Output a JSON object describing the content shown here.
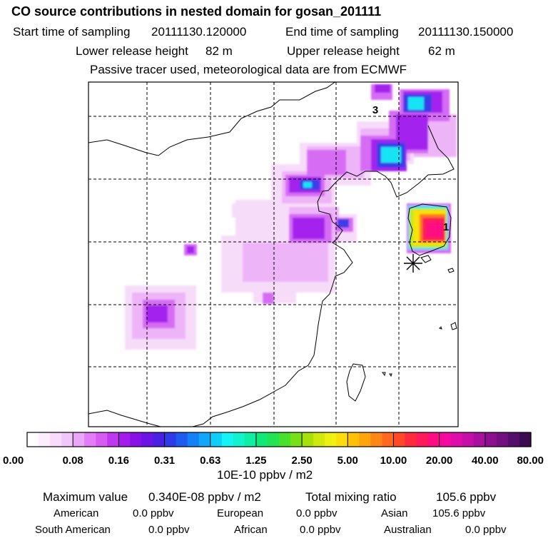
{
  "header": {
    "title": "CO  source contributions in nested domain for gosan_201111",
    "start_label": "Start time of sampling",
    "start_value": "20111130.120000",
    "end_label": "End time of sampling",
    "end_value": "20111130.150000",
    "lower_label": "Lower release height",
    "lower_value": "82 m",
    "upper_label": "Upper release height",
    "upper_value": "62 m",
    "note": "Passive tracer used, meteorological data are from ECMWF"
  },
  "map": {
    "labels": [
      "3",
      "1"
    ],
    "receptor_marker": "asterisk-icon"
  },
  "colorbar": {
    "tick_labels": [
      "0.00",
      "0.08",
      "0.16",
      "0.31",
      "0.63",
      "1.25",
      "2.50",
      "5.00",
      "10.00",
      "20.00",
      "40.00",
      "80.00"
    ],
    "unit": "10E-10 ppbv / m2",
    "colors": [
      "#ffffff",
      "#fdeefe",
      "#f9dcfd",
      "#f3c6fb",
      "#eca6f9",
      "#e37cf6",
      "#d75af3",
      "#bf38ef",
      "#a51dec",
      "#8a10e8",
      "#6a14e6",
      "#4a20e4",
      "#2f3ae8",
      "#1e5cf0",
      "#1482f6",
      "#10a6fa",
      "#10cefc",
      "#14f4f4",
      "#12f2cc",
      "#10eea2",
      "#12e878",
      "#22e452",
      "#48e02e",
      "#78e016",
      "#a8e00e",
      "#d0e80e",
      "#f0f010",
      "#ffdc0a",
      "#ffc008",
      "#ffa40c",
      "#ff8614",
      "#ff681e",
      "#ff4828",
      "#ff2a3c",
      "#ff1a5a",
      "#ff0c82",
      "#f40aa0",
      "#e00cac",
      "#c60ea8",
      "#aa10a0",
      "#8e1092",
      "#721082",
      "#560e6c",
      "#3c0c52"
    ]
  },
  "stats": {
    "max_label": "Maximum value",
    "max_value": "0.340E-08 ppbv / m2",
    "total_label": "Total mixing ratio",
    "total_value": "105.6 ppbv",
    "rows": [
      [
        {
          "name": "American",
          "value": "0.0 ppbv"
        },
        {
          "name": "European",
          "value": "0.0 ppbv"
        },
        {
          "name": "Asian",
          "value": "105.6 ppbv"
        }
      ],
      [
        {
          "name": "South American",
          "value": "0.0 ppbv"
        },
        {
          "name": "African",
          "value": "0.0 ppbv"
        },
        {
          "name": "Australian",
          "value": "0.0 ppbv"
        }
      ]
    ]
  }
}
